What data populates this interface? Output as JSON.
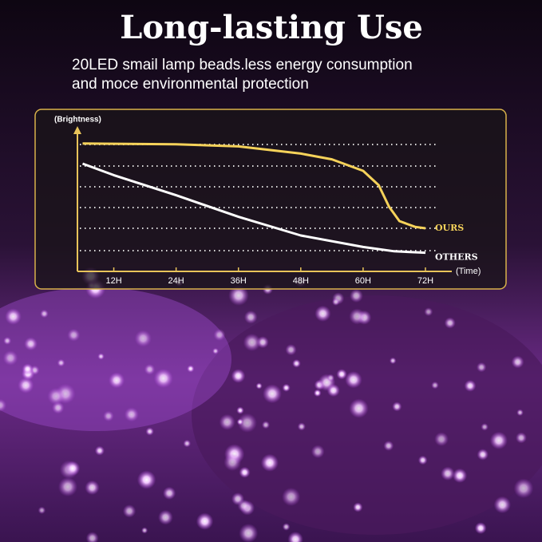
{
  "header": {
    "title": "Long-lasting Use",
    "subtitle": [
      "20LED smail lamp beads.less energy consumption",
      "and moce environmental protection"
    ]
  },
  "chart_data": {
    "type": "line",
    "y_label": "(Brightness)",
    "x_label": "(Time)",
    "xlim": [
      5,
      77
    ],
    "xticks": [
      {
        "value": 12,
        "label": "12H"
      },
      {
        "value": 24,
        "label": "24H"
      },
      {
        "value": 36,
        "label": "36H"
      },
      {
        "value": 48,
        "label": "48H"
      },
      {
        "value": 60,
        "label": "60H"
      },
      {
        "value": 72,
        "label": "72H"
      }
    ],
    "ylim": [
      0,
      100
    ],
    "series": [
      {
        "name": "OURS",
        "color": "#f5d25a",
        "x": [
          6,
          24,
          36,
          48,
          54,
          60,
          63,
          65,
          67,
          70,
          72
        ],
        "values": [
          89,
          88.5,
          87,
          82,
          78,
          70,
          60,
          45,
          35,
          31,
          30
        ]
      },
      {
        "name": "OTHERS",
        "color": "#ffffff",
        "x": [
          6,
          12,
          24,
          36,
          48,
          60,
          66,
          72
        ],
        "values": [
          75,
          67,
          53,
          38,
          25,
          17,
          14,
          13
        ]
      }
    ]
  }
}
